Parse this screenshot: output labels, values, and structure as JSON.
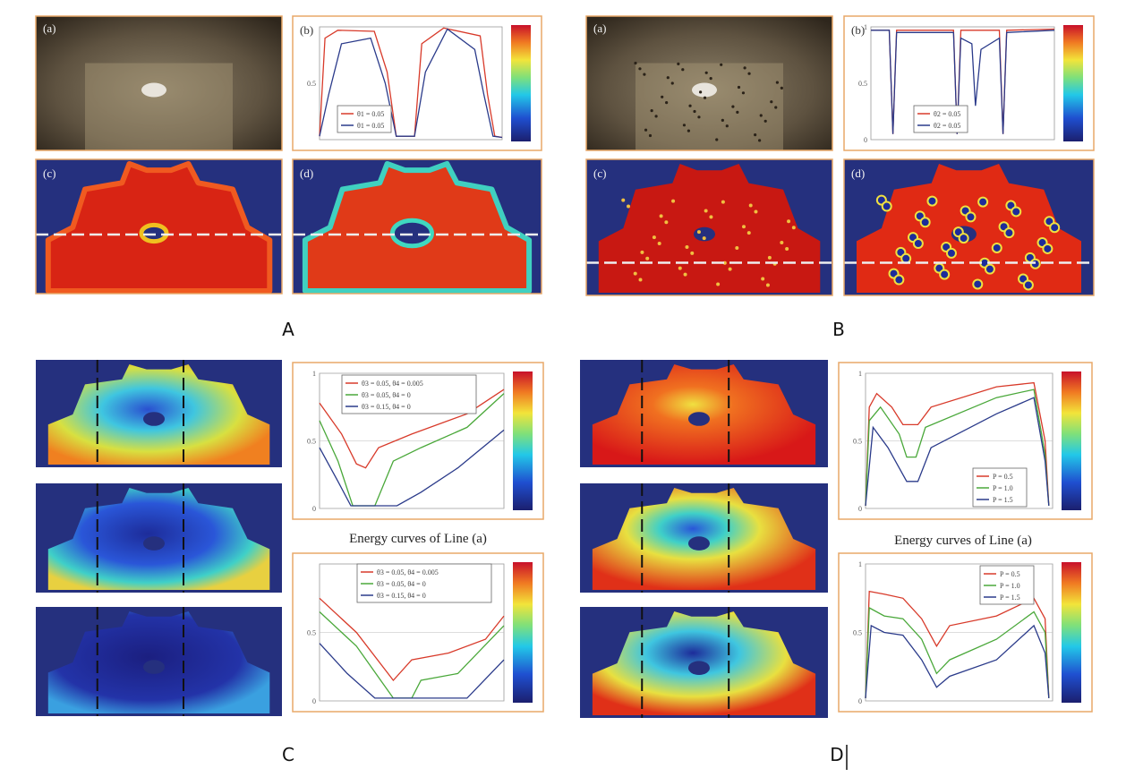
{
  "panel_A": {
    "label": "A",
    "tags": [
      "(a)",
      "(b)",
      "(c)",
      "(d)"
    ],
    "legend": [
      "θ1 = 0.05",
      "θ1 = 0.05"
    ],
    "yticks": [
      "0.5"
    ]
  },
  "panel_B": {
    "label": "B",
    "tags": [
      "(a)",
      "(b)",
      "(c)",
      "(d)"
    ],
    "legend": [
      "θ2 = 0.05",
      "θ2 = 0.05"
    ],
    "yticks": [
      "1",
      "0.5",
      "0"
    ]
  },
  "panel_C": {
    "label": "C",
    "caption": "Energy curves of Line (a)",
    "legend_top": [
      "θ3 = 0.05, θ4 = 0.005",
      "θ3 = 0.05, θ4 = 0",
      "θ3 = 0.15, θ4 = 0"
    ],
    "legend_bottom": [
      "θ3 = 0.05, θ4 = 0.005",
      "θ3 = 0.05, θ4 = 0",
      "θ3 = 0.15, θ4 = 0"
    ],
    "yticks_top": [
      "1",
      "0.5",
      "0"
    ],
    "yticks_bottom": [
      "0.5",
      "0"
    ]
  },
  "panel_D": {
    "label": "D",
    "caption": "Energy curves of Line (a)",
    "legend_top": [
      "P = 0.5",
      "P = 1.0",
      "P = 1.5"
    ],
    "legend_bottom": [
      "P = 0.5",
      "P = 1.0",
      "P = 1.5"
    ],
    "yticks_top": [
      "1",
      "0.5",
      "0"
    ],
    "yticks_bottom": [
      "1",
      "0.5",
      "0"
    ]
  }
}
